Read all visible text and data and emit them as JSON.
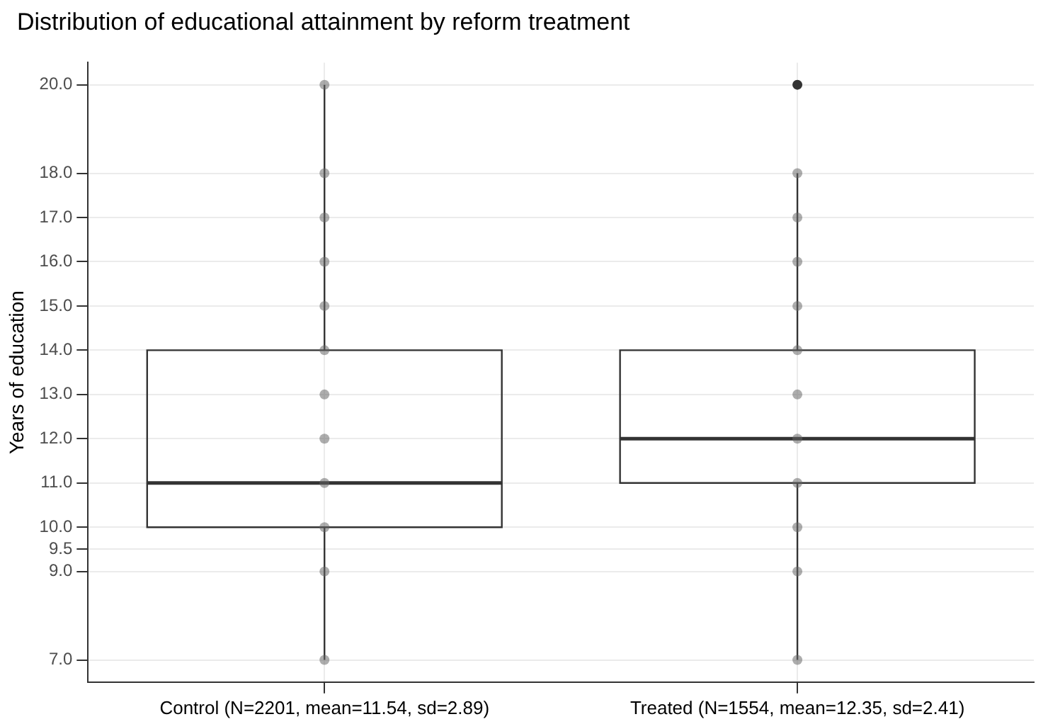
{
  "chart_data": {
    "type": "box",
    "title": "Distribution of educational attainment by reform treatment",
    "ylabel": "Years of education",
    "categories": [
      "Control (N=2201, mean=11.54, sd=2.89)",
      "Treated (N=1554, mean=12.35, sd=2.41)"
    ],
    "boxes": [
      {
        "low": 7,
        "q1": 10,
        "median": 11,
        "q3": 14,
        "high": 20
      },
      {
        "low": 7,
        "q1": 11,
        "median": 12,
        "q3": 14,
        "high": 18,
        "outliers": [
          20
        ]
      }
    ],
    "series": [
      {
        "type": "scatter",
        "color": "#666666",
        "x": [
          "Control (N=2201, mean=11.54, sd=2.89)",
          "Control (N=2201, mean=11.54, sd=2.89)",
          "Control (N=2201, mean=11.54, sd=2.89)",
          "Control (N=2201, mean=11.54, sd=2.89)",
          "Control (N=2201, mean=11.54, sd=2.89)",
          "Control (N=2201, mean=11.54, sd=2.89)",
          "Control (N=2201, mean=11.54, sd=2.89)",
          "Control (N=2201, mean=11.54, sd=2.89)",
          "Control (N=2201, mean=11.54, sd=2.89)",
          "Control (N=2201, mean=11.54, sd=2.89)",
          "Control (N=2201, mean=11.54, sd=2.89)",
          "Control (N=2201, mean=11.54, sd=2.89)",
          "Treated (N=1554, mean=12.35, sd=2.41)",
          "Treated (N=1554, mean=12.35, sd=2.41)",
          "Treated (N=1554, mean=12.35, sd=2.41)",
          "Treated (N=1554, mean=12.35, sd=2.41)",
          "Treated (N=1554, mean=12.35, sd=2.41)",
          "Treated (N=1554, mean=12.35, sd=2.41)",
          "Treated (N=1554, mean=12.35, sd=2.41)",
          "Treated (N=1554, mean=12.35, sd=2.41)",
          "Treated (N=1554, mean=12.35, sd=2.41)",
          "Treated (N=1554, mean=12.35, sd=2.41)",
          "Treated (N=1554, mean=12.35, sd=2.41)"
        ],
        "values": [
          7,
          9,
          10,
          11,
          12,
          13,
          14,
          15,
          16,
          17,
          18,
          20,
          7,
          9,
          10,
          11,
          12,
          13,
          14,
          15,
          16,
          17,
          18
        ]
      }
    ],
    "ylim": [
      6.5,
      20.5
    ],
    "yticks": [
      {
        "value": 7,
        "label": "7.0"
      },
      {
        "value": 9,
        "label": "9.0"
      },
      {
        "value": 9.5,
        "label": "9.5"
      },
      {
        "value": 10,
        "label": "10.0"
      },
      {
        "value": 11,
        "label": "11.0"
      },
      {
        "value": 12,
        "label": "12.0"
      },
      {
        "value": 13,
        "label": "13.0"
      },
      {
        "value": 14,
        "label": "14.0"
      },
      {
        "value": 15,
        "label": "15.0"
      },
      {
        "value": 16,
        "label": "16.0"
      },
      {
        "value": 17,
        "label": "17.0"
      },
      {
        "value": 18,
        "label": "18.0"
      },
      {
        "value": 20,
        "label": "20.0"
      }
    ],
    "grid": true,
    "legend": false,
    "marker": "circle"
  }
}
